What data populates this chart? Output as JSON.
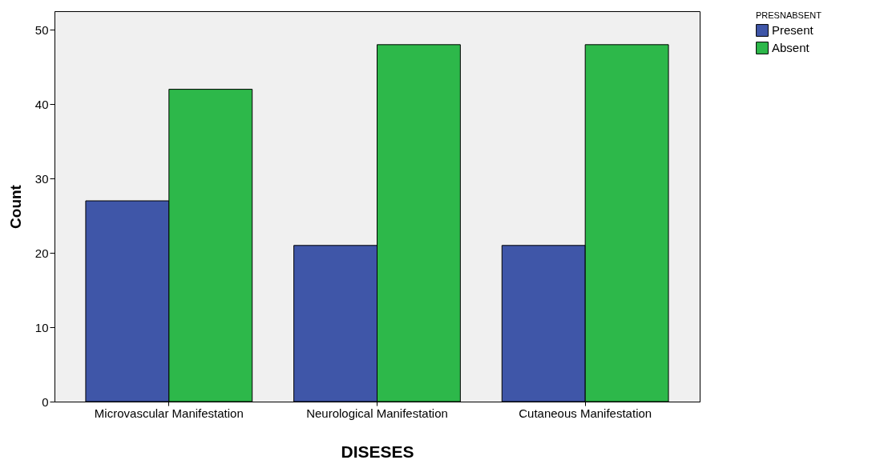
{
  "chart_data": {
    "type": "bar",
    "xlabel": "DISESES",
    "ylabel": "Count",
    "legend_title": "PRESNABSENT",
    "categories": [
      "Microvascular Manifestation",
      "Neurological Manifestation",
      "Cutaneous Manifestation"
    ],
    "series": [
      {
        "name": "Present",
        "color": "#3f56a8",
        "values": [
          27,
          21,
          21
        ]
      },
      {
        "name": "Absent",
        "color": "#2db84a",
        "values": [
          42,
          48,
          48
        ]
      }
    ],
    "ylim": [
      0,
      52.5
    ],
    "yticks": [
      0,
      10,
      20,
      30,
      40,
      50
    ],
    "grid": false,
    "legend": "top right"
  }
}
